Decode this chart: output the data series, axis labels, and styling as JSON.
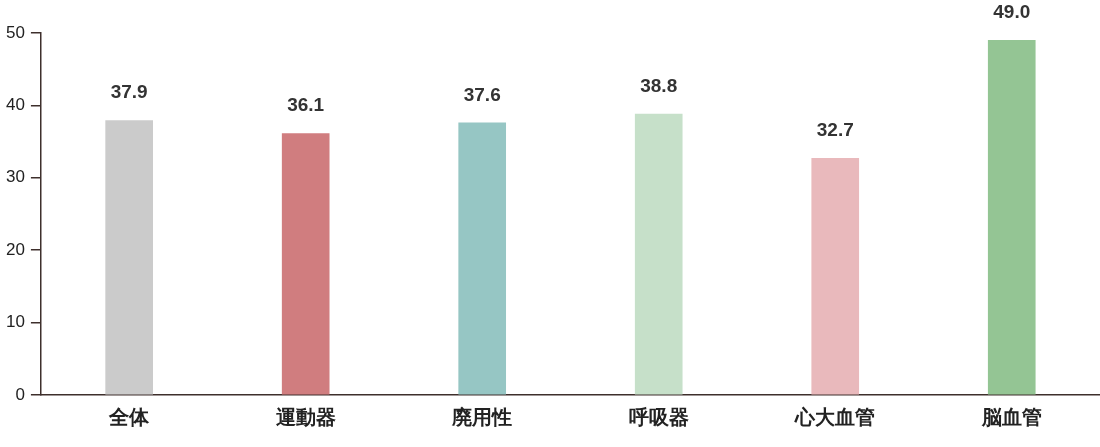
{
  "chart_data": {
    "type": "bar",
    "categories": [
      "全体",
      "運動器",
      "廃用性",
      "呼吸器",
      "心大血管",
      "脳血管"
    ],
    "values": [
      37.9,
      36.1,
      37.6,
      38.8,
      32.7,
      49.0
    ],
    "colors": [
      "#cbcbcb",
      "#d07d7f",
      "#96c6c4",
      "#c6e0c9",
      "#e9b9bc",
      "#94c594"
    ],
    "value_labels": [
      "37.9",
      "36.1",
      "37.6",
      "38.8",
      "32.7",
      "49.0"
    ],
    "ylim": [
      0,
      50
    ],
    "yticks": [
      0,
      10,
      20,
      30,
      40,
      50
    ],
    "grid": false,
    "legend": false
  }
}
